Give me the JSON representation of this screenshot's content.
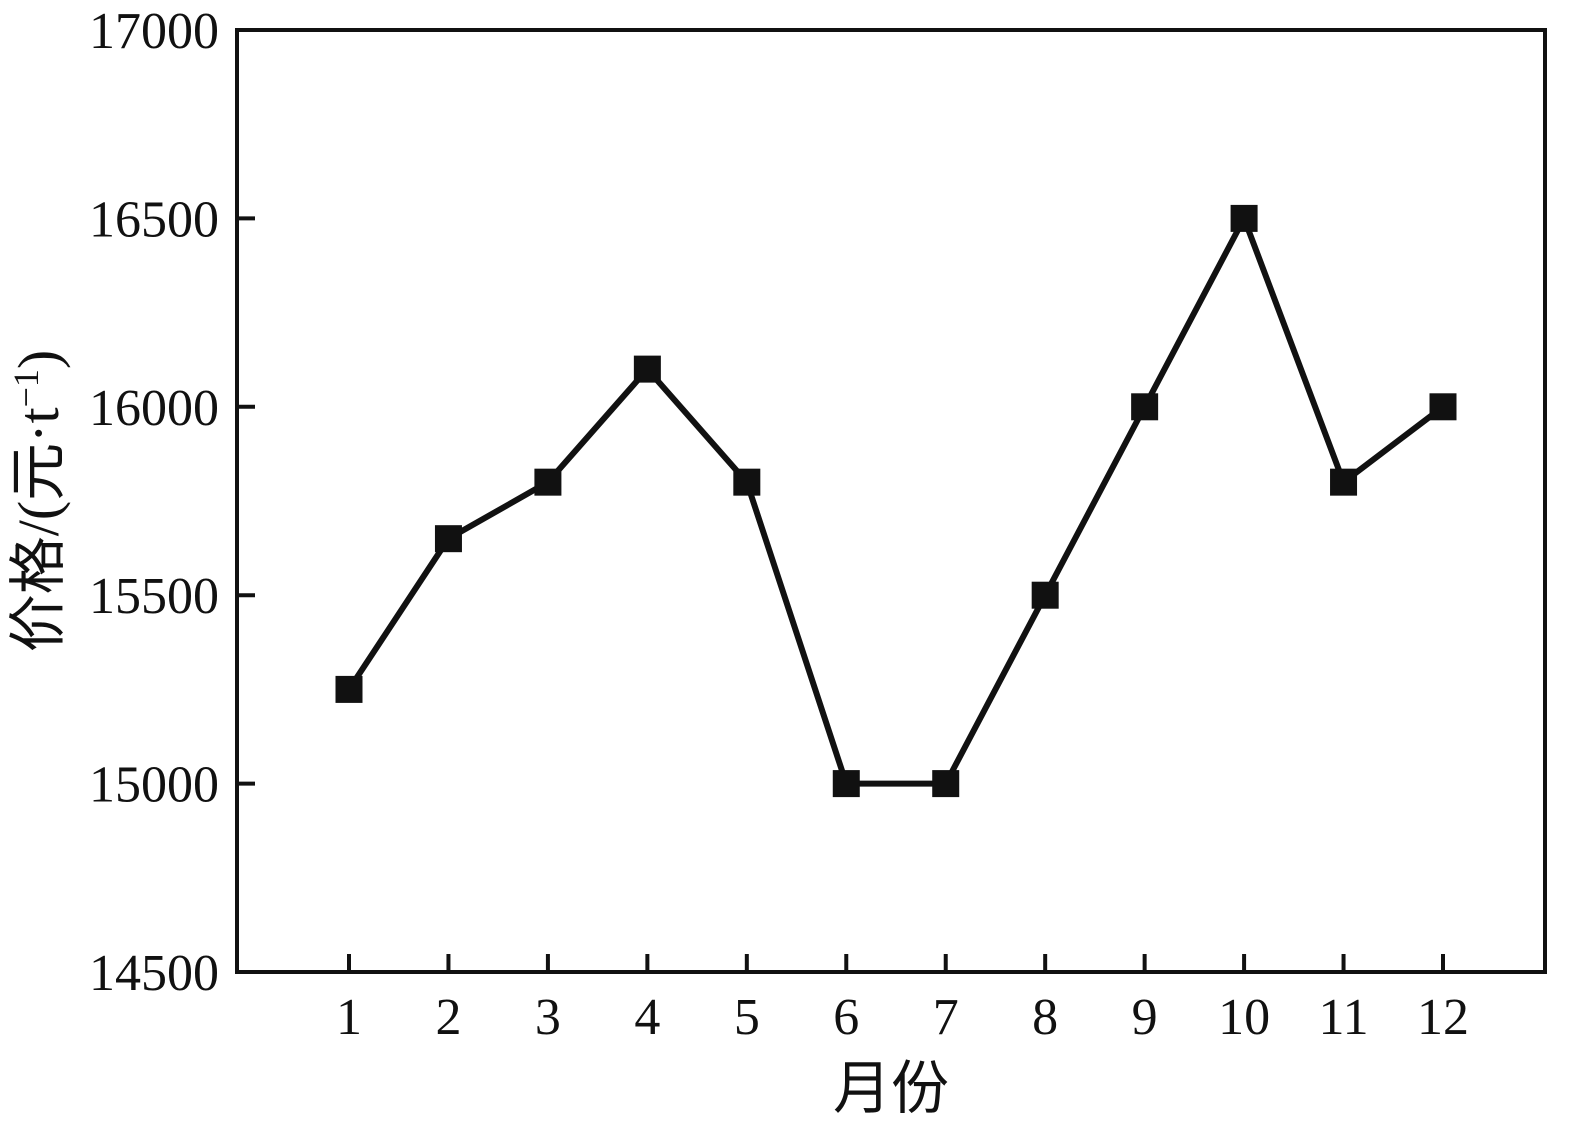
{
  "chart_data": {
    "type": "line",
    "title": "",
    "xlabel": "月份",
    "ylabel": "价格/(元·t⁻¹)",
    "x": [
      1,
      2,
      3,
      4,
      5,
      6,
      7,
      8,
      9,
      10,
      11,
      12
    ],
    "series": [
      {
        "name": "价格",
        "values": [
          15250,
          15650,
          15800,
          16100,
          15800,
          15000,
          15000,
          15500,
          16000,
          16500,
          15800,
          16000
        ]
      }
    ],
    "ylim": [
      14500,
      17000
    ],
    "yticks": [
      14500,
      15000,
      15500,
      16000,
      16500,
      17000
    ],
    "xticks": [
      1,
      2,
      3,
      4,
      5,
      6,
      7,
      8,
      9,
      10,
      11,
      12
    ],
    "grid": false,
    "legend": "none",
    "marker": "square",
    "line_color": "#111111",
    "marker_color": "#111111",
    "background": "#ffffff"
  }
}
